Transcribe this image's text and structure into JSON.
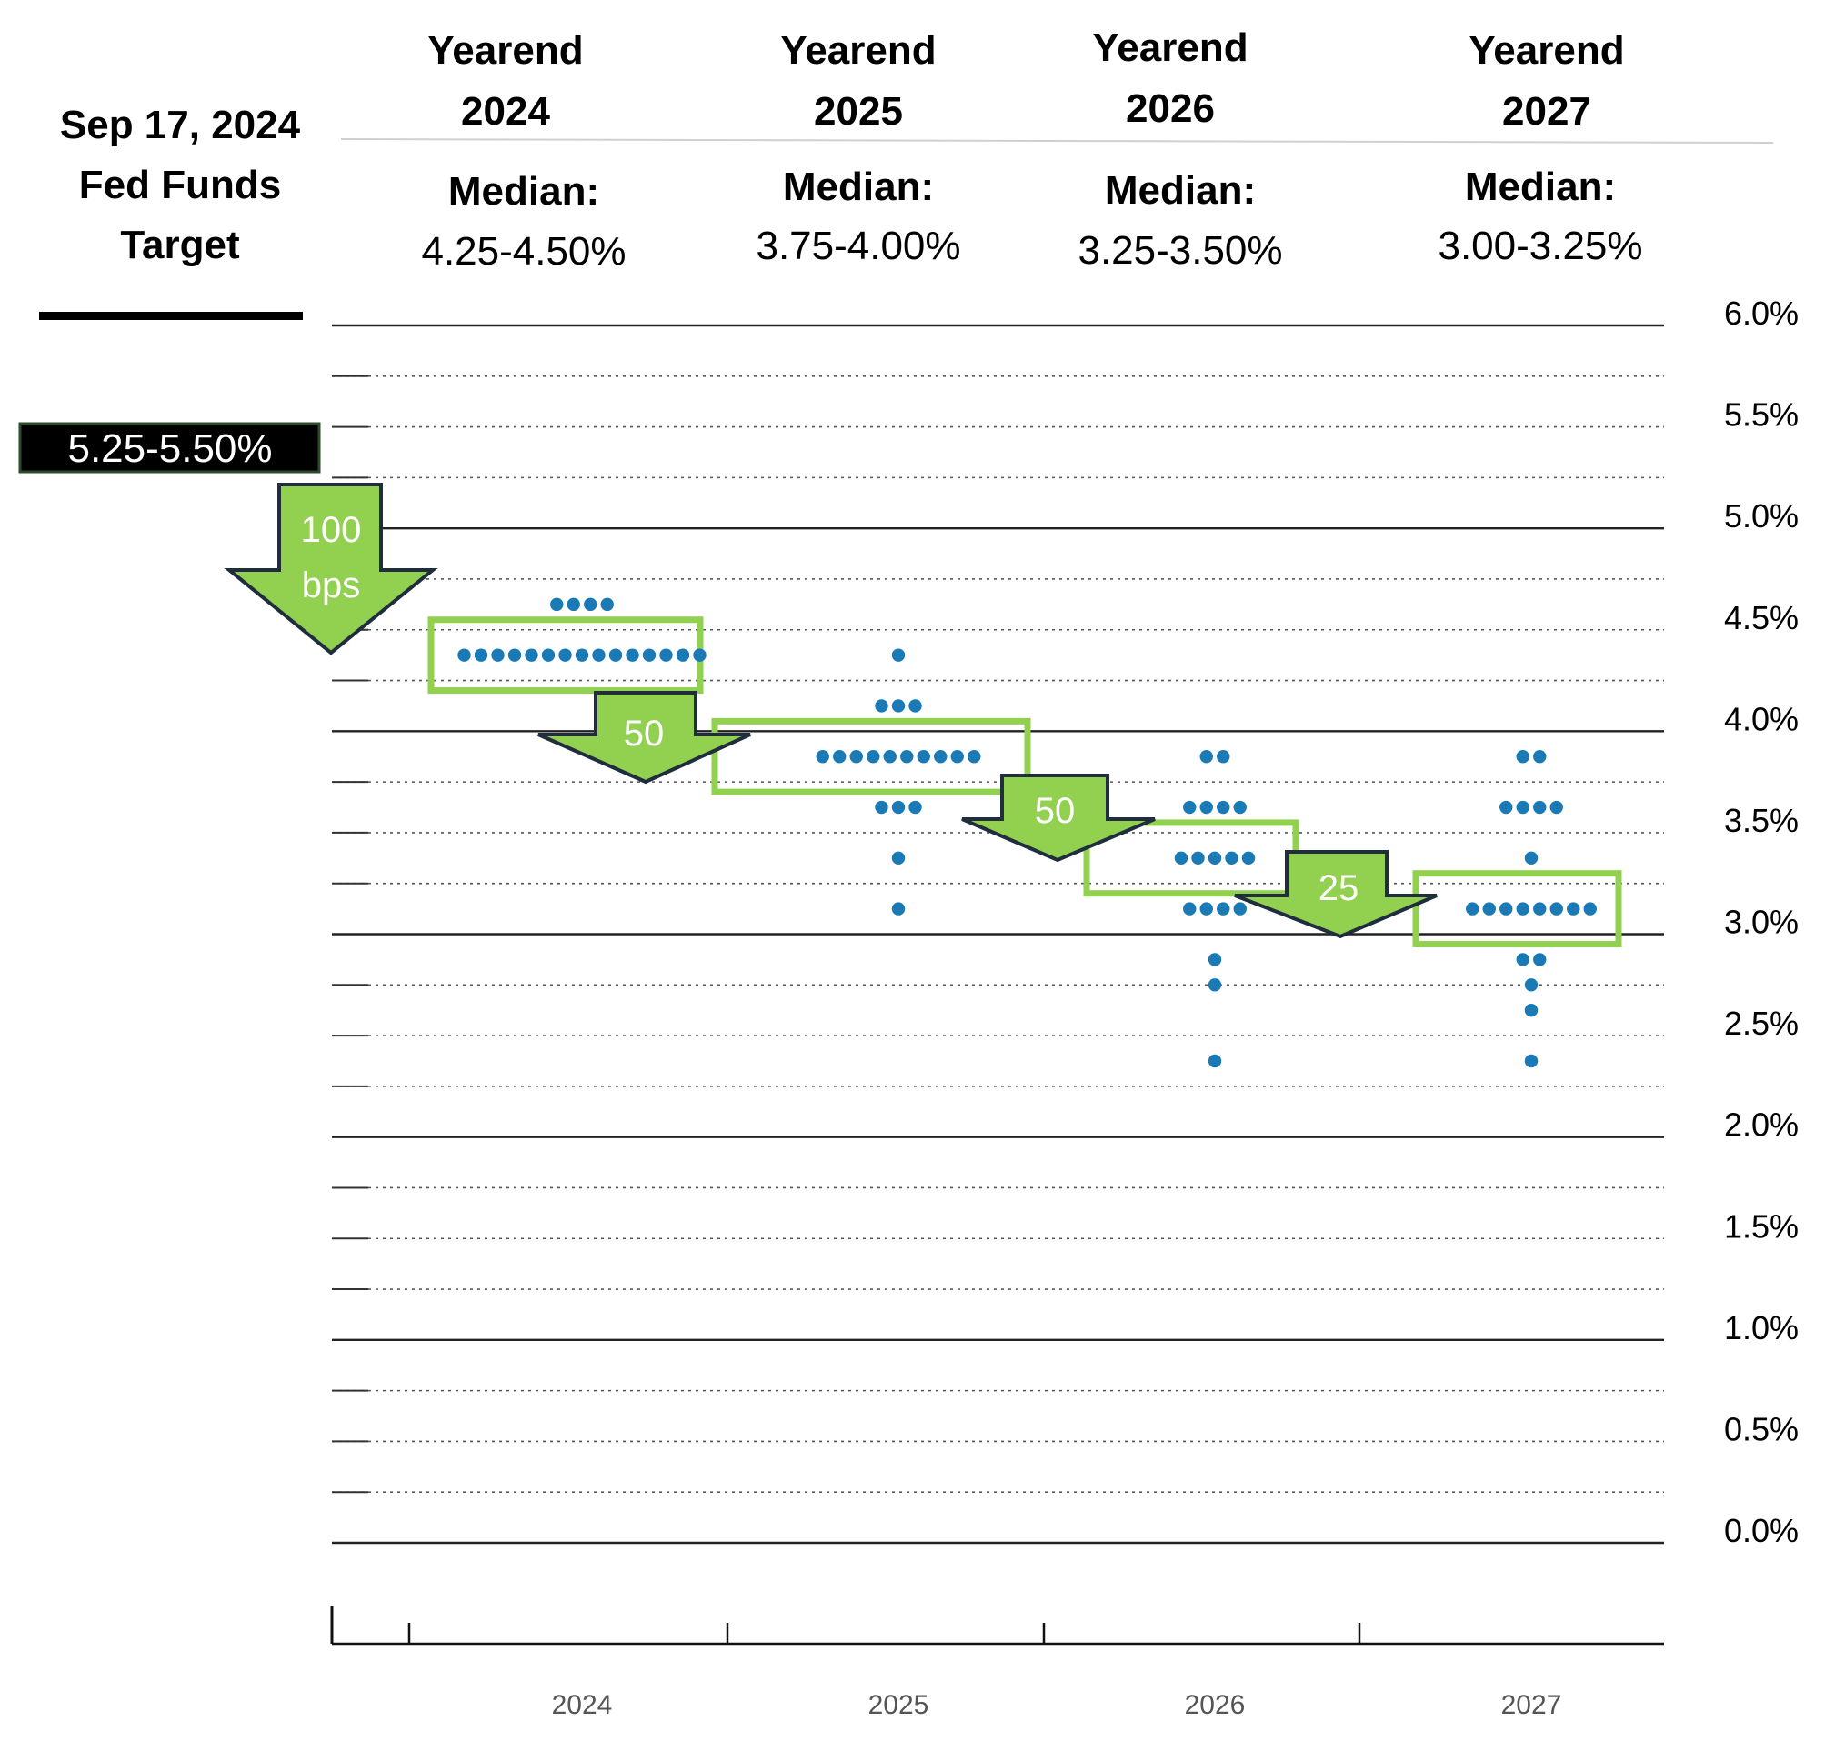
{
  "header": {
    "left": {
      "line1": "Sep 17, 2024",
      "line2": "Fed Funds",
      "line3": "Target"
    },
    "columns": [
      {
        "line1": "Yearend",
        "line2": "2024",
        "median_label": "Median:",
        "median_value": "4.25-4.50%"
      },
      {
        "line1": "Yearend",
        "line2": "2025",
        "median_label": "Median:",
        "median_value": "3.75-4.00%"
      },
      {
        "line1": "Yearend",
        "line2": "2026",
        "median_label": "Median:",
        "median_value": "3.25-3.50%"
      },
      {
        "line1": "Yearend",
        "line2": "2027",
        "median_label": "Median:",
        "median_value": "3.00-3.25%"
      }
    ]
  },
  "current_target": "5.25-5.50%",
  "arrows": [
    {
      "label_lines": [
        "100",
        "bps"
      ]
    },
    {
      "label_lines": [
        "50"
      ]
    },
    {
      "label_lines": [
        "50"
      ]
    },
    {
      "label_lines": [
        "25"
      ]
    }
  ],
  "colors": {
    "dot": "#1a7ab5",
    "highlight": "#92d050",
    "arrow_fill": "#92d050",
    "arrow_stroke": "#1f2d3d",
    "target_bg": "#000000",
    "target_border": "#2e4a2e"
  },
  "chart_data": {
    "type": "scatter",
    "ylim": [
      0,
      6
    ],
    "y_ticks": [
      "6.0%",
      "5.5%",
      "5.0%",
      "4.5%",
      "4.0%",
      "3.5%",
      "3.0%",
      "2.5%",
      "2.0%",
      "1.5%",
      "1.0%",
      "0.5%",
      "0.0%"
    ],
    "y_tick_values": [
      6.0,
      5.5,
      5.0,
      4.5,
      4.0,
      3.5,
      3.0,
      2.5,
      2.0,
      1.5,
      1.0,
      0.5,
      0.0
    ],
    "categories": [
      "2024",
      "2025",
      "2026",
      "2027"
    ],
    "grid": true,
    "series": [
      {
        "category": "2024",
        "points": [
          {
            "y": 4.625,
            "count": 4
          },
          {
            "y": 4.375,
            "count": 15
          }
        ]
      },
      {
        "category": "2025",
        "points": [
          {
            "y": 4.375,
            "count": 1
          },
          {
            "y": 4.125,
            "count": 3
          },
          {
            "y": 3.875,
            "count": 10
          },
          {
            "y": 3.625,
            "count": 3
          },
          {
            "y": 3.375,
            "count": 1
          },
          {
            "y": 3.125,
            "count": 1
          }
        ]
      },
      {
        "category": "2026",
        "points": [
          {
            "y": 3.875,
            "count": 2
          },
          {
            "y": 3.625,
            "count": 4
          },
          {
            "y": 3.375,
            "count": 5
          },
          {
            "y": 3.125,
            "count": 4
          },
          {
            "y": 2.875,
            "count": 1
          },
          {
            "y": 2.75,
            "count": 1
          },
          {
            "y": 2.375,
            "count": 1
          }
        ]
      },
      {
        "category": "2027",
        "points": [
          {
            "y": 3.875,
            "count": 2
          },
          {
            "y": 3.625,
            "count": 4
          },
          {
            "y": 3.375,
            "count": 1
          },
          {
            "y": 3.125,
            "count": 8
          },
          {
            "y": 2.875,
            "count": 2
          },
          {
            "y": 2.75,
            "count": 1
          },
          {
            "y": 2.625,
            "count": 1
          },
          {
            "y": 2.375,
            "count": 1
          }
        ]
      }
    ],
    "medians": [
      {
        "category": "2024",
        "low": 4.25,
        "high": 4.5
      },
      {
        "category": "2025",
        "low": 3.75,
        "high": 4.0
      },
      {
        "category": "2026",
        "low": 3.25,
        "high": 3.5
      },
      {
        "category": "2027",
        "low": 3.0,
        "high": 3.25
      }
    ]
  }
}
